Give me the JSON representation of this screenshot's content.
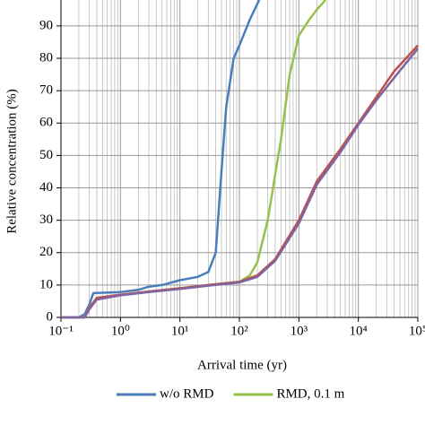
{
  "chart_data": {
    "type": "line",
    "xlabel": "Arrival time (yr)",
    "ylabel": "Relative concentration (%)",
    "xscale": "log",
    "grid": true,
    "legend": "bottom",
    "xlim": [
      0.1,
      100000
    ],
    "ylim": [
      0,
      98
    ],
    "xticks": [
      {
        "value": 0.1,
        "label": "10⁻¹"
      },
      {
        "value": 1,
        "label": "10⁰"
      },
      {
        "value": 10,
        "label": "10¹"
      },
      {
        "value": 100,
        "label": "10²"
      },
      {
        "value": 1000,
        "label": "10³"
      },
      {
        "value": 10000,
        "label": "10⁴"
      },
      {
        "value": 100000,
        "label": "10⁵"
      }
    ],
    "yticks": [
      0,
      10,
      20,
      30,
      40,
      50,
      60,
      70,
      80,
      90
    ],
    "series": [
      {
        "name": "w/o RMD",
        "color": "#4a7ebb",
        "x": [
          0.1,
          0.2,
          0.25,
          0.3,
          0.35,
          1,
          2,
          3,
          5,
          10,
          20,
          30,
          40,
          50,
          60,
          80,
          100,
          150,
          215
        ],
        "values": [
          0,
          0,
          1,
          4,
          7.5,
          7.8,
          8.5,
          9.5,
          10,
          11.5,
          12.5,
          14,
          20,
          45,
          65,
          80,
          84,
          92,
          98
        ]
      },
      {
        "name": "RMD, 0.1 m",
        "color": "#98c04c",
        "x": [
          0.1,
          0.25,
          0.3,
          0.4,
          1,
          3,
          10,
          30,
          100,
          150,
          200,
          300,
          500,
          700,
          1000,
          1500,
          2000,
          2800
        ],
        "values": [
          0,
          0,
          3,
          6,
          7,
          8,
          9,
          10,
          11,
          13,
          17,
          30,
          55,
          75,
          87,
          92,
          95,
          98
        ]
      },
      {
        "color": "#c0504d",
        "x": [
          0.1,
          0.25,
          0.3,
          0.4,
          1,
          3,
          10,
          30,
          100,
          200,
          400,
          1000,
          2000,
          5000,
          10000,
          20000,
          40000,
          100000
        ],
        "values": [
          0,
          0,
          3,
          6,
          7,
          8,
          9,
          10,
          11,
          13,
          18,
          30,
          42,
          52,
          60,
          68,
          76,
          84
        ]
      },
      {
        "color": "#8064a2",
        "x": [
          0.1,
          0.25,
          0.3,
          0.4,
          1,
          3,
          10,
          30,
          100,
          200,
          400,
          1000,
          2000,
          5000,
          10000,
          20000,
          40000,
          100000
        ],
        "values": [
          0,
          0,
          2.5,
          5.5,
          6.8,
          7.8,
          8.8,
          9.8,
          10.8,
          12.5,
          17.5,
          29,
          41,
          51,
          59.5,
          67,
          74,
          83
        ]
      }
    ]
  }
}
